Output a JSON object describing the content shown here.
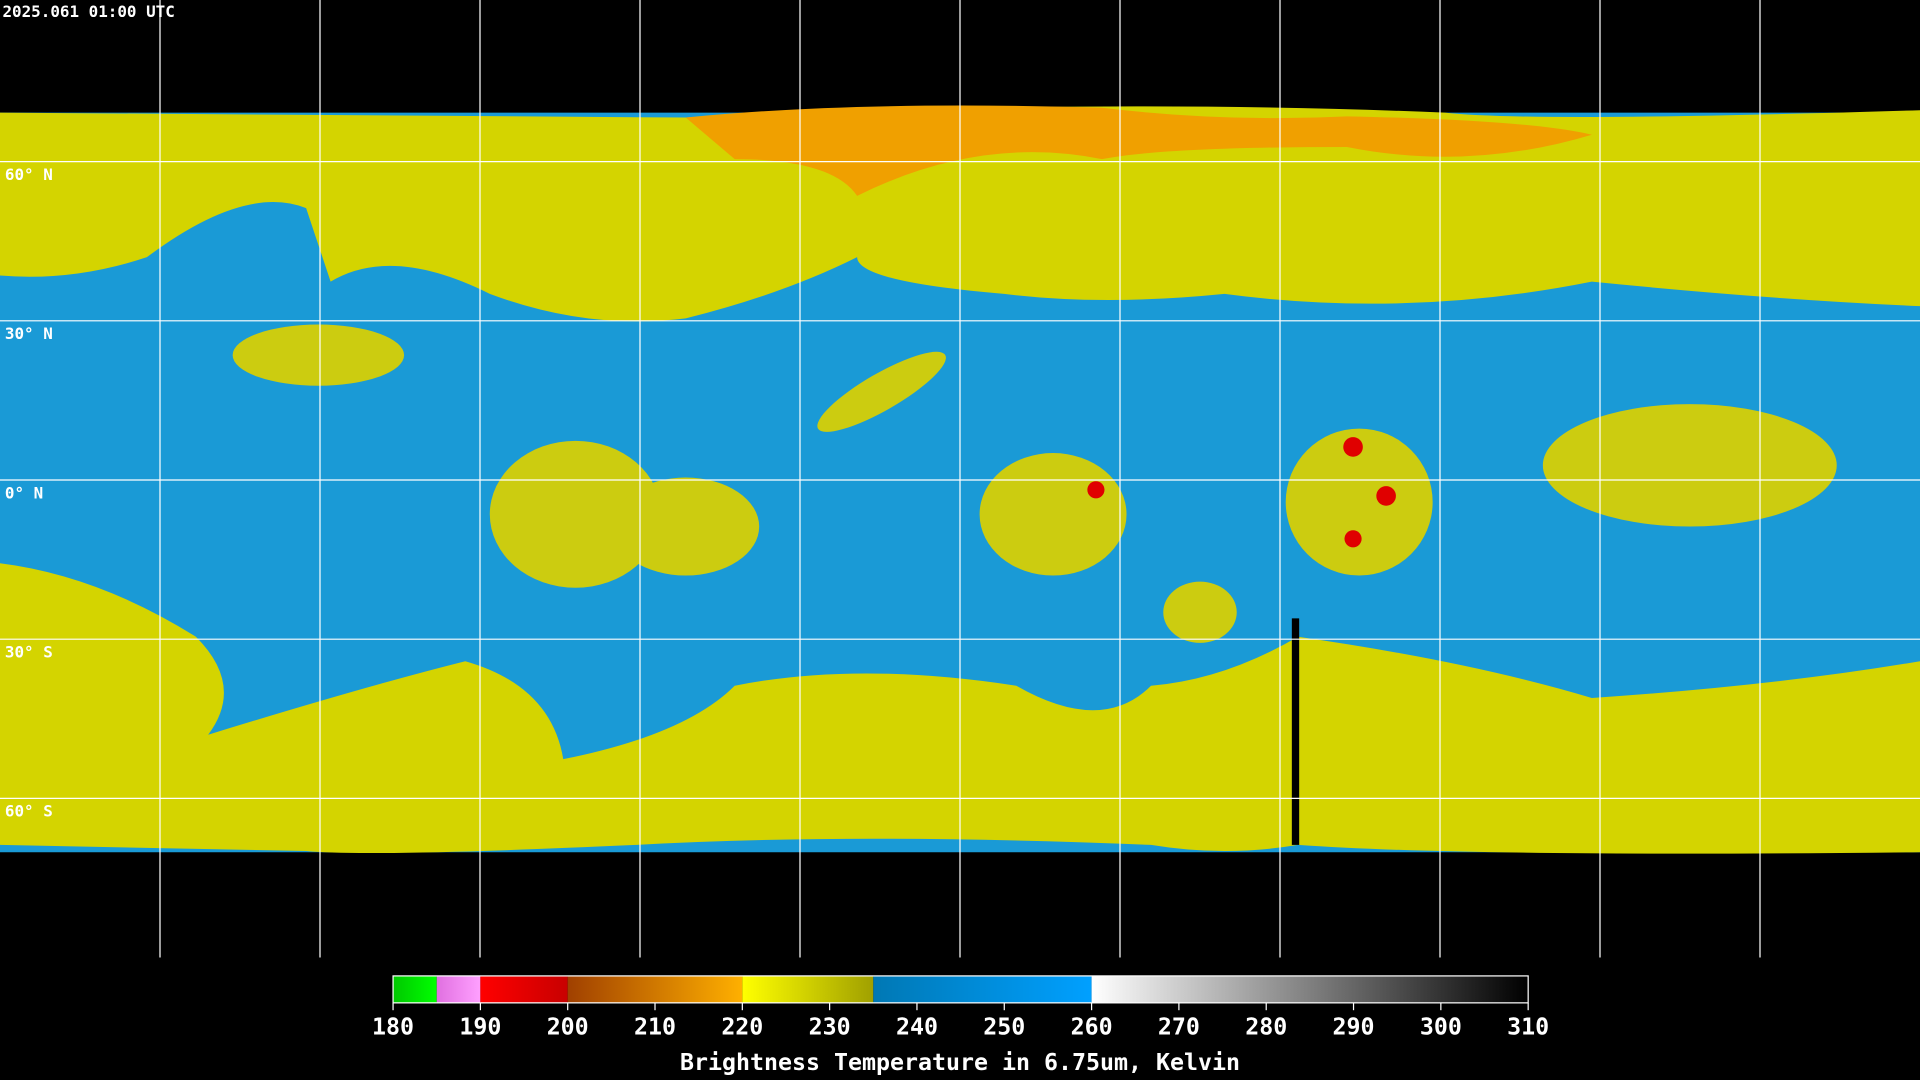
{
  "header": {
    "timestamp": "2025.061 01:00 UTC"
  },
  "map": {
    "lat_labels": [
      "60° N",
      "30° N",
      "0° N",
      "30° S",
      "60° S"
    ]
  },
  "colorbar": {
    "range": [
      180,
      310
    ],
    "ticks": [
      180,
      190,
      200,
      210,
      220,
      230,
      240,
      250,
      260,
      270,
      280,
      290,
      300,
      310
    ],
    "label": "Brightness Temperature in 6.75um, Kelvin",
    "segments": [
      {
        "from": 180,
        "to": 185,
        "colors": [
          "#00c800",
          "#00ff00"
        ]
      },
      {
        "from": 185,
        "to": 190,
        "colors": [
          "#e070e0",
          "#ffa0ff"
        ]
      },
      {
        "from": 190,
        "to": 200,
        "colors": [
          "#ff0000",
          "#c80000"
        ]
      },
      {
        "from": 200,
        "to": 220,
        "colors": [
          "#a04000",
          "#ffb000"
        ]
      },
      {
        "from": 220,
        "to": 235,
        "colors": [
          "#ffff00",
          "#a0a000"
        ]
      },
      {
        "from": 235,
        "to": 260,
        "colors": [
          "#0078b4",
          "#00a0ff"
        ]
      },
      {
        "from": 260,
        "to": 310,
        "colors": [
          "#ffffff",
          "#000000"
        ]
      }
    ]
  }
}
